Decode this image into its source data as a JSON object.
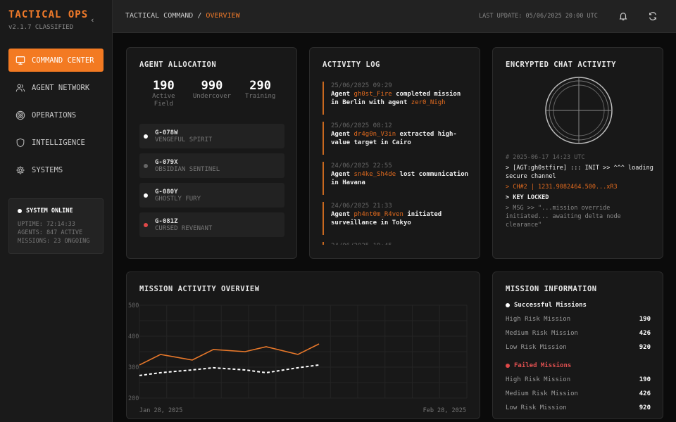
{
  "sidebar": {
    "brand": "TACTICAL OPS",
    "version": "v2.1.7 CLASSIFIED",
    "items": [
      {
        "label": "COMMAND CENTER",
        "icon": "monitor-icon"
      },
      {
        "label": "AGENT NETWORK",
        "icon": "users-icon"
      },
      {
        "label": "OPERATIONS",
        "icon": "target-icon"
      },
      {
        "label": "INTELLIGENCE",
        "icon": "shield-icon"
      },
      {
        "label": "SYSTEMS",
        "icon": "gear-icon"
      }
    ],
    "status": {
      "title": "SYSTEM ONLINE",
      "uptime": "UPTIME: 72:14:33",
      "agents": "AGENTS: 847 ACTIVE",
      "missions": "MISSIONS: 23 ONGOING"
    }
  },
  "header": {
    "crumb_root": "TACTICAL COMMAND",
    "crumb_sep": "/",
    "crumb_current": "OVERVIEW",
    "last_update": "LAST UPDATE: 05/06/2025 20:00 UTC"
  },
  "allocation": {
    "title": "AGENT ALLOCATION",
    "stats": [
      {
        "value": "190",
        "label": "Active Field"
      },
      {
        "value": "990",
        "label": "Undercover"
      },
      {
        "value": "290",
        "label": "Training"
      }
    ],
    "agents": [
      {
        "id": "G-078W",
        "name": "VENGEFUL SPIRIT",
        "status_color": "#ffffff"
      },
      {
        "id": "G-079X",
        "name": "OBSIDIAN SENTINEL",
        "status_color": "#666666"
      },
      {
        "id": "G-080Y",
        "name": "GHOSTLY FURY",
        "status_color": "#ffffff"
      },
      {
        "id": "G-081Z",
        "name": "CURSED REVENANT",
        "status_color": "#e04848"
      }
    ]
  },
  "log": {
    "title": "ACTIVITY LOG",
    "entries": [
      {
        "time": "25/06/2025 09:29",
        "pre": "Agent ",
        "agent": "gh0st_Fire",
        "mid": " completed mission in Berlin with agent ",
        "agent2": "zer0_Nigh",
        "post": ""
      },
      {
        "time": "25/06/2025 08:12",
        "pre": "Agent ",
        "agent": "dr4g0n_V3in",
        "mid": " extracted high-value target in Cairo",
        "agent2": "",
        "post": ""
      },
      {
        "time": "24/06/2025 22:55",
        "pre": "Agent ",
        "agent": "sn4ke_Sh4de",
        "mid": " lost communication in Havana",
        "agent2": "",
        "post": ""
      },
      {
        "time": "24/06/2025 21:33",
        "pre": "Agent ",
        "agent": "ph4nt0m_R4ven",
        "mid": " initiated surveillance in Tokyo",
        "agent2": "",
        "post": ""
      },
      {
        "time": "24/06/2025 19:45",
        "pre": "",
        "agent": "",
        "mid": "",
        "agent2": "",
        "post": ""
      }
    ]
  },
  "chat": {
    "title": "ENCRYPTED CHAT ACTIVITY",
    "timestamp": "# 2025-06-17 14:23 UTC",
    "line1": "> [AGT:gh0stfire] ::: INIT >> ^^^ loading secure channel",
    "line2": "> CH#2 | 1231.9082464.500...xR3",
    "line3": "> KEY LOCKED",
    "line4": "> MSG >> \"...mission override initiated... awaiting delta node clearance\""
  },
  "chart_data": {
    "type": "line",
    "title": "MISSION ACTIVITY OVERVIEW",
    "ylim": [
      200,
      500
    ],
    "yticks": [
      "500",
      "400",
      "300",
      "200"
    ],
    "xlabels": [
      "Jan 28, 2025",
      "Feb 28, 2025"
    ],
    "grid": true,
    "x": [
      "2025-01-28",
      "2025-01-30",
      "2025-02-02",
      "2025-02-04",
      "2025-02-07",
      "2025-02-09",
      "2025-02-12",
      "2025-02-14"
    ],
    "series": [
      {
        "values": [
          307,
          341,
          323,
          357,
          350,
          366,
          341,
          375
        ],
        "color": "#e8782a",
        "style": "solid"
      },
      {
        "values": [
          273,
          282,
          291,
          298,
          291,
          282,
          298,
          307
        ],
        "color": "#ffffff",
        "style": "dashed"
      }
    ]
  },
  "mission_info": {
    "title": "MISSION INFORMATION",
    "success_label": "Successful Missions",
    "failed_label": "Failed Missions",
    "success": [
      {
        "label": "High Risk Mission",
        "value": "190"
      },
      {
        "label": "Medium Risk Mission",
        "value": "426"
      },
      {
        "label": "Low Risk Mission",
        "value": "920"
      }
    ],
    "failed": [
      {
        "label": "High Risk Mission",
        "value": "190"
      },
      {
        "label": "Medium Risk Mission",
        "value": "426"
      },
      {
        "label": "Low Risk Mission",
        "value": "920"
      }
    ]
  },
  "colors": {
    "accent": "#f37a22",
    "failed": "#e04848"
  }
}
